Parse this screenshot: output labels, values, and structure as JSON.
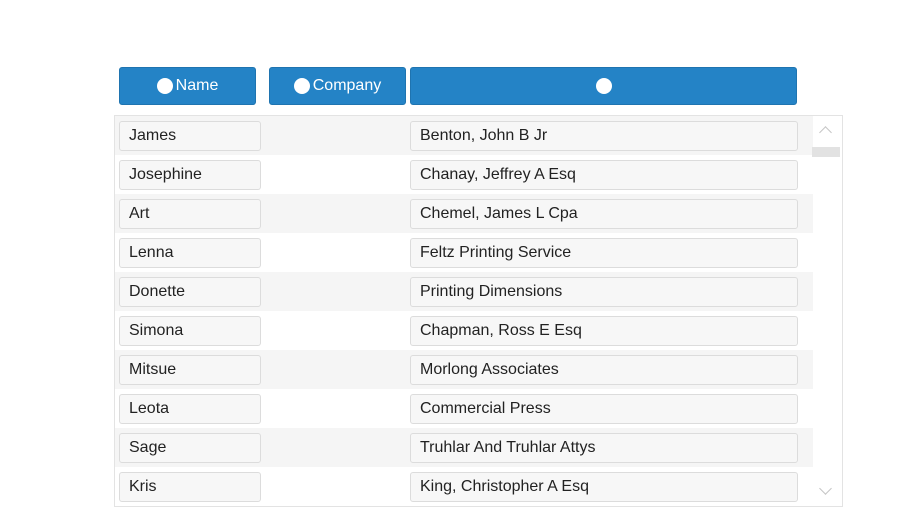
{
  "header": {
    "columns": [
      {
        "label": "Name",
        "icon": "circle-icon"
      },
      {
        "label": "Company",
        "icon": "circle-icon"
      },
      {
        "label": "",
        "icon": "circle-icon"
      }
    ]
  },
  "colors": {
    "header_bg": "#2483c6",
    "row_alt_bg": "#f5f5f5"
  },
  "rows": [
    {
      "first": "James",
      "company": "Benton, John B Jr"
    },
    {
      "first": "Josephine",
      "company": "Chanay, Jeffrey A Esq"
    },
    {
      "first": "Art",
      "company": "Chemel, James L Cpa"
    },
    {
      "first": "Lenna",
      "company": "Feltz Printing Service"
    },
    {
      "first": "Donette",
      "company": "Printing Dimensions"
    },
    {
      "first": "Simona",
      "company": "Chapman, Ross E Esq"
    },
    {
      "first": "Mitsue",
      "company": "Morlong Associates"
    },
    {
      "first": "Leota",
      "company": "Commercial Press"
    },
    {
      "first": "Sage",
      "company": "Truhlar And Truhlar Attys"
    },
    {
      "first": "Kris",
      "company": "King, Christopher A Esq"
    }
  ]
}
